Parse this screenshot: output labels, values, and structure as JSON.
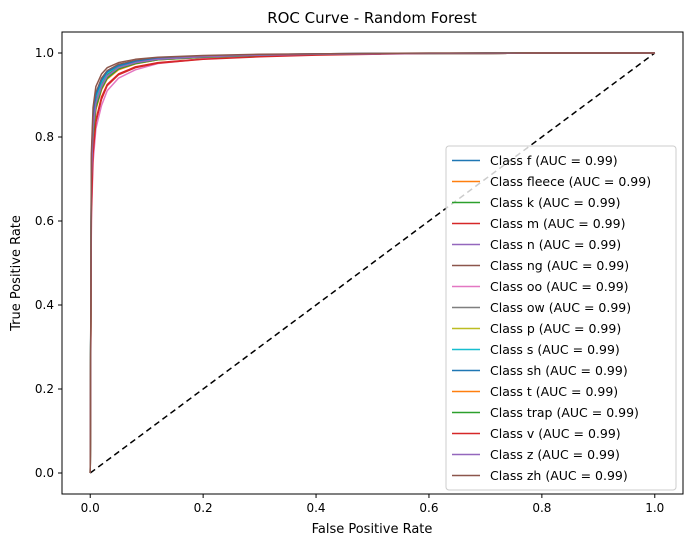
{
  "chart_data": {
    "type": "line",
    "title": "ROC Curve - Random Forest",
    "xlabel": "False Positive Rate",
    "ylabel": "True Positive Rate",
    "xlim": [
      -0.05,
      1.05
    ],
    "ylim": [
      -0.05,
      1.05
    ],
    "xticks": [
      "0.0",
      "0.2",
      "0.4",
      "0.6",
      "0.8",
      "1.0"
    ],
    "yticks": [
      "0.0",
      "0.2",
      "0.4",
      "0.6",
      "0.8",
      "1.0"
    ],
    "grid": false,
    "legend_position": "lower right",
    "diagonal": {
      "x": [
        0,
        1
      ],
      "y": [
        0,
        1
      ],
      "color": "#000000",
      "style": "dashed"
    },
    "series": [
      {
        "name": "Class f (AUC = 0.99)",
        "color": "#1f77b4",
        "x": [
          0,
          0.002,
          0.005,
          0.01,
          0.02,
          0.03,
          0.05,
          0.08,
          0.12,
          0.2,
          0.3,
          0.4,
          0.5,
          0.6,
          0.7,
          0.8,
          0.9,
          1.0
        ],
        "y": [
          0,
          0.7,
          0.82,
          0.88,
          0.92,
          0.945,
          0.965,
          0.977,
          0.985,
          0.991,
          0.995,
          0.997,
          0.998,
          0.999,
          0.999,
          1.0,
          1.0,
          1.0
        ]
      },
      {
        "name": "Class fleece (AUC = 0.99)",
        "color": "#ff7f0e",
        "x": [
          0,
          0.002,
          0.005,
          0.01,
          0.02,
          0.03,
          0.05,
          0.08,
          0.12,
          0.2,
          0.3,
          0.4,
          0.5,
          0.6,
          0.7,
          0.8,
          0.9,
          1.0
        ],
        "y": [
          0,
          0.68,
          0.8,
          0.87,
          0.915,
          0.94,
          0.962,
          0.975,
          0.984,
          0.99,
          0.994,
          0.997,
          0.998,
          0.999,
          0.999,
          1.0,
          1.0,
          1.0
        ]
      },
      {
        "name": "Class k (AUC = 0.99)",
        "color": "#2ca02c",
        "x": [
          0,
          0.002,
          0.005,
          0.01,
          0.02,
          0.03,
          0.05,
          0.08,
          0.12,
          0.2,
          0.3,
          0.4,
          0.5,
          0.6,
          0.7,
          0.8,
          0.9,
          1.0
        ],
        "y": [
          0,
          0.71,
          0.83,
          0.89,
          0.925,
          0.948,
          0.966,
          0.978,
          0.986,
          0.991,
          0.995,
          0.997,
          0.998,
          0.999,
          0.999,
          1.0,
          1.0,
          1.0
        ]
      },
      {
        "name": "Class m (AUC = 0.99)",
        "color": "#d62728",
        "x": [
          0,
          0.002,
          0.005,
          0.01,
          0.02,
          0.03,
          0.05,
          0.08,
          0.12,
          0.2,
          0.3,
          0.4,
          0.5,
          0.6,
          0.7,
          0.8,
          0.9,
          1.0
        ],
        "y": [
          0,
          0.64,
          0.77,
          0.84,
          0.895,
          0.925,
          0.95,
          0.967,
          0.977,
          0.986,
          0.992,
          0.996,
          0.998,
          0.999,
          0.999,
          1.0,
          1.0,
          1.0
        ]
      },
      {
        "name": "Class n (AUC = 0.99)",
        "color": "#9467bd",
        "x": [
          0,
          0.002,
          0.005,
          0.01,
          0.02,
          0.03,
          0.05,
          0.08,
          0.12,
          0.2,
          0.3,
          0.4,
          0.5,
          0.6,
          0.7,
          0.8,
          0.9,
          1.0
        ],
        "y": [
          0,
          0.69,
          0.81,
          0.875,
          0.918,
          0.942,
          0.963,
          0.976,
          0.985,
          0.99,
          0.995,
          0.997,
          0.998,
          0.999,
          0.999,
          1.0,
          1.0,
          1.0
        ]
      },
      {
        "name": "Class ng (AUC = 0.99)",
        "color": "#8c564b",
        "x": [
          0,
          0.002,
          0.005,
          0.01,
          0.02,
          0.03,
          0.05,
          0.08,
          0.12,
          0.2,
          0.3,
          0.4,
          0.5,
          0.6,
          0.7,
          0.8,
          0.9,
          1.0
        ],
        "y": [
          0,
          0.74,
          0.85,
          0.905,
          0.94,
          0.958,
          0.973,
          0.982,
          0.988,
          0.993,
          0.996,
          0.998,
          0.999,
          0.999,
          1.0,
          1.0,
          1.0,
          1.0
        ]
      },
      {
        "name": "Class oo (AUC = 0.99)",
        "color": "#e377c2",
        "x": [
          0,
          0.002,
          0.005,
          0.01,
          0.02,
          0.03,
          0.05,
          0.08,
          0.12,
          0.2,
          0.3,
          0.4,
          0.5,
          0.6,
          0.7,
          0.8,
          0.9,
          1.0
        ],
        "y": [
          0,
          0.6,
          0.74,
          0.82,
          0.875,
          0.91,
          0.94,
          0.96,
          0.975,
          0.986,
          0.992,
          0.996,
          0.998,
          0.999,
          0.999,
          1.0,
          1.0,
          1.0
        ]
      },
      {
        "name": "Class ow (AUC = 0.99)",
        "color": "#7f7f7f",
        "x": [
          0,
          0.002,
          0.005,
          0.01,
          0.02,
          0.03,
          0.05,
          0.08,
          0.12,
          0.2,
          0.3,
          0.4,
          0.5,
          0.6,
          0.7,
          0.8,
          0.9,
          1.0
        ],
        "y": [
          0,
          0.7,
          0.82,
          0.885,
          0.922,
          0.946,
          0.965,
          0.977,
          0.985,
          0.991,
          0.995,
          0.997,
          0.998,
          0.999,
          0.999,
          1.0,
          1.0,
          1.0
        ]
      },
      {
        "name": "Class p (AUC = 0.99)",
        "color": "#bcbd22",
        "x": [
          0,
          0.002,
          0.005,
          0.01,
          0.02,
          0.03,
          0.05,
          0.08,
          0.12,
          0.2,
          0.3,
          0.4,
          0.5,
          0.6,
          0.7,
          0.8,
          0.9,
          1.0
        ],
        "y": [
          0,
          0.69,
          0.81,
          0.88,
          0.92,
          0.944,
          0.964,
          0.976,
          0.985,
          0.99,
          0.995,
          0.997,
          0.998,
          0.999,
          0.999,
          1.0,
          1.0,
          1.0
        ]
      },
      {
        "name": "Class s (AUC = 0.99)",
        "color": "#17becf",
        "x": [
          0,
          0.002,
          0.005,
          0.01,
          0.02,
          0.03,
          0.05,
          0.08,
          0.12,
          0.2,
          0.3,
          0.4,
          0.5,
          0.6,
          0.7,
          0.8,
          0.9,
          1.0
        ],
        "y": [
          0,
          0.72,
          0.84,
          0.895,
          0.93,
          0.952,
          0.969,
          0.979,
          0.986,
          0.992,
          0.995,
          0.997,
          0.998,
          0.999,
          0.999,
          1.0,
          1.0,
          1.0
        ]
      },
      {
        "name": "Class sh (AUC = 0.99)",
        "color": "#1f77b4",
        "x": [
          0,
          0.002,
          0.005,
          0.01,
          0.02,
          0.03,
          0.05,
          0.08,
          0.12,
          0.2,
          0.3,
          0.4,
          0.5,
          0.6,
          0.7,
          0.8,
          0.9,
          1.0
        ],
        "y": [
          0,
          0.73,
          0.845,
          0.9,
          0.935,
          0.955,
          0.97,
          0.98,
          0.987,
          0.992,
          0.996,
          0.998,
          0.999,
          0.999,
          1.0,
          1.0,
          1.0,
          1.0
        ]
      },
      {
        "name": "Class t (AUC = 0.99)",
        "color": "#ff7f0e",
        "x": [
          0,
          0.002,
          0.005,
          0.01,
          0.02,
          0.03,
          0.05,
          0.08,
          0.12,
          0.2,
          0.3,
          0.4,
          0.5,
          0.6,
          0.7,
          0.8,
          0.9,
          1.0
        ],
        "y": [
          0,
          0.67,
          0.79,
          0.865,
          0.912,
          0.938,
          0.96,
          0.974,
          0.984,
          0.99,
          0.994,
          0.997,
          0.998,
          0.999,
          0.999,
          1.0,
          1.0,
          1.0
        ]
      },
      {
        "name": "Class trap (AUC = 0.99)",
        "color": "#2ca02c",
        "x": [
          0,
          0.002,
          0.005,
          0.01,
          0.02,
          0.03,
          0.05,
          0.08,
          0.12,
          0.2,
          0.3,
          0.4,
          0.5,
          0.6,
          0.7,
          0.8,
          0.9,
          1.0
        ],
        "y": [
          0,
          0.68,
          0.8,
          0.87,
          0.915,
          0.94,
          0.962,
          0.975,
          0.984,
          0.99,
          0.994,
          0.997,
          0.998,
          0.999,
          0.999,
          1.0,
          1.0,
          1.0
        ]
      },
      {
        "name": "Class v (AUC = 0.99)",
        "color": "#d62728",
        "x": [
          0,
          0.002,
          0.005,
          0.01,
          0.02,
          0.03,
          0.05,
          0.08,
          0.12,
          0.2,
          0.3,
          0.4,
          0.5,
          0.6,
          0.7,
          0.8,
          0.9,
          1.0
        ],
        "y": [
          0,
          0.62,
          0.76,
          0.835,
          0.89,
          0.922,
          0.948,
          0.965,
          0.976,
          0.985,
          0.991,
          0.995,
          0.997,
          0.999,
          0.999,
          1.0,
          1.0,
          1.0
        ]
      },
      {
        "name": "Class z (AUC = 0.99)",
        "color": "#9467bd",
        "x": [
          0,
          0.002,
          0.005,
          0.01,
          0.02,
          0.03,
          0.05,
          0.08,
          0.12,
          0.2,
          0.3,
          0.4,
          0.5,
          0.6,
          0.7,
          0.8,
          0.9,
          1.0
        ],
        "y": [
          0,
          0.7,
          0.82,
          0.88,
          0.92,
          0.945,
          0.965,
          0.977,
          0.985,
          0.991,
          0.995,
          0.997,
          0.998,
          0.999,
          0.999,
          1.0,
          1.0,
          1.0
        ]
      },
      {
        "name": "Class zh (AUC = 0.99)",
        "color": "#8c564b",
        "x": [
          0,
          0.002,
          0.005,
          0.01,
          0.02,
          0.03,
          0.05,
          0.08,
          0.12,
          0.2,
          0.3,
          0.4,
          0.5,
          0.6,
          0.7,
          0.8,
          0.9,
          1.0
        ],
        "y": [
          0,
          0.76,
          0.87,
          0.92,
          0.95,
          0.965,
          0.977,
          0.985,
          0.99,
          0.994,
          0.997,
          0.998,
          0.999,
          1.0,
          1.0,
          1.0,
          1.0,
          1.0
        ]
      }
    ]
  }
}
